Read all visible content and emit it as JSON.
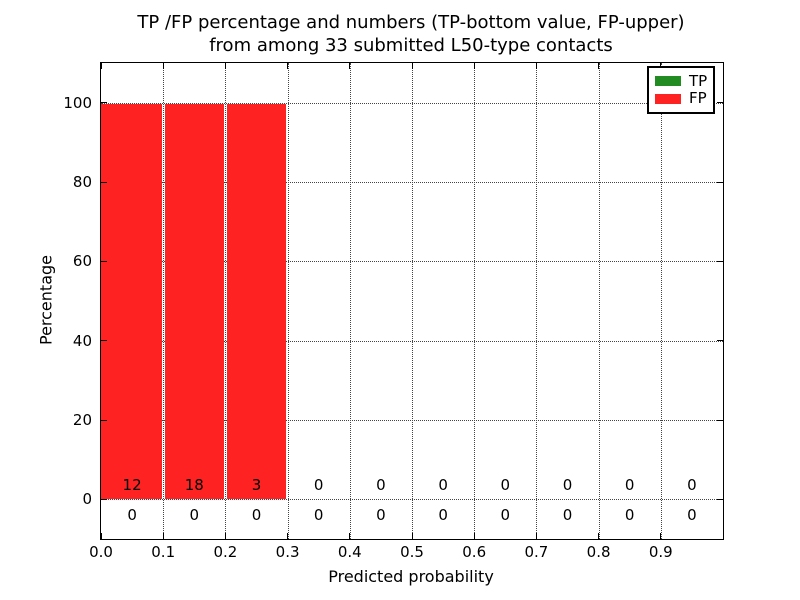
{
  "figure": {
    "title_line1": "TP /FP percentage and numbers (TP-bottom value, FP-upper)",
    "title_line2": "from among 33 submitted L50-type contacts"
  },
  "axes": {
    "xlabel": "Predicted probability",
    "ylabel": "Percentage",
    "x_ticks": [
      {
        "label": "0.0",
        "value": 0.0
      },
      {
        "label": "0.1",
        "value": 0.1
      },
      {
        "label": "0.2",
        "value": 0.2
      },
      {
        "label": "0.3",
        "value": 0.3
      },
      {
        "label": "0.4",
        "value": 0.4
      },
      {
        "label": "0.5",
        "value": 0.5
      },
      {
        "label": "0.6",
        "value": 0.6
      },
      {
        "label": "0.7",
        "value": 0.7
      },
      {
        "label": "0.8",
        "value": 0.8
      },
      {
        "label": "0.9",
        "value": 0.9
      }
    ],
    "y_ticks": [
      {
        "label": "0",
        "value": 0
      },
      {
        "label": "20",
        "value": 20
      },
      {
        "label": "40",
        "value": 40
      },
      {
        "label": "60",
        "value": 60
      },
      {
        "label": "80",
        "value": 80
      },
      {
        "label": "100",
        "value": 100
      }
    ]
  },
  "legend": {
    "items": [
      {
        "label": "TP",
        "color": "#228b22"
      },
      {
        "label": "FP",
        "color": "#ff2222"
      }
    ]
  },
  "chart_data": {
    "type": "bar",
    "title": "TP /FP percentage and numbers (TP-bottom value, FP-upper) from among 33 submitted L50-type contacts",
    "xlabel": "Predicted probability",
    "ylabel": "Percentage",
    "xlim": [
      0.0,
      1.0
    ],
    "ylim": [
      -10,
      110
    ],
    "grid": "dotted",
    "legend_position": "upper right",
    "total_contacts": 33,
    "bin_edges": [
      0.0,
      0.1,
      0.2,
      0.3,
      0.4,
      0.5,
      0.6,
      0.7,
      0.8,
      0.9,
      1.0
    ],
    "x_gridlines": [
      0.1,
      0.2,
      0.3,
      0.4,
      0.5,
      0.6,
      0.7,
      0.8,
      0.9
    ],
    "y_gridlines": [
      0,
      20,
      40,
      60,
      80,
      100
    ],
    "series": [
      {
        "name": "TP",
        "color": "#228b22",
        "percent": [
          0,
          0,
          0,
          0,
          0,
          0,
          0,
          0,
          0,
          0
        ],
        "counts": [
          0,
          0,
          0,
          0,
          0,
          0,
          0,
          0,
          0,
          0
        ],
        "count_row_y": -4
      },
      {
        "name": "FP",
        "color": "#ff2222",
        "percent": [
          100,
          100,
          100,
          0,
          0,
          0,
          0,
          0,
          0,
          0
        ],
        "counts": [
          12,
          18,
          3,
          0,
          0,
          0,
          0,
          0,
          0,
          0
        ],
        "count_row_y": 3.6
      }
    ]
  }
}
